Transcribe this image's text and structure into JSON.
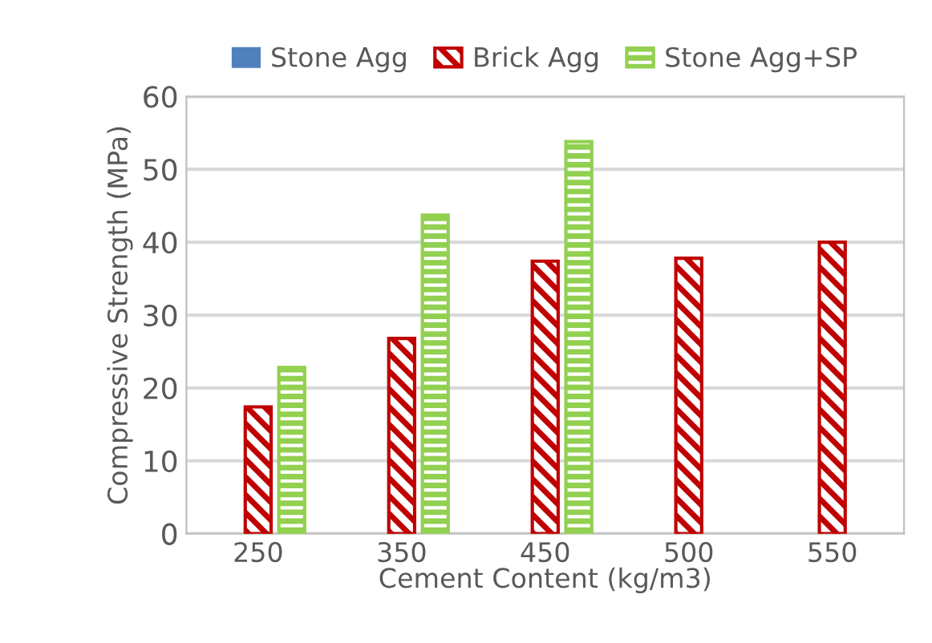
{
  "chart_data": {
    "type": "bar",
    "xlabel": "Cement Content (kg/m3)",
    "ylabel": "Compressive Strength (MPa)",
    "categories": [
      "250",
      "350",
      "450",
      "500",
      "550"
    ],
    "series": [
      {
        "name": "Stone Agg",
        "color": "#4f81bd",
        "values": [
          null,
          null,
          null,
          null,
          null
        ]
      },
      {
        "name": "Brick Agg",
        "color": "#c00000",
        "values": [
          17.4,
          26.8,
          37.4,
          37.8,
          40.0
        ]
      },
      {
        "name": "Stone Agg+SP",
        "color": "#92d050",
        "values": [
          22.8,
          43.7,
          53.8,
          null,
          null
        ]
      }
    ],
    "ylim": [
      0,
      60
    ],
    "yticks": [
      0,
      10,
      20,
      30,
      40,
      50,
      60
    ],
    "grid": "y",
    "legend": "top"
  }
}
